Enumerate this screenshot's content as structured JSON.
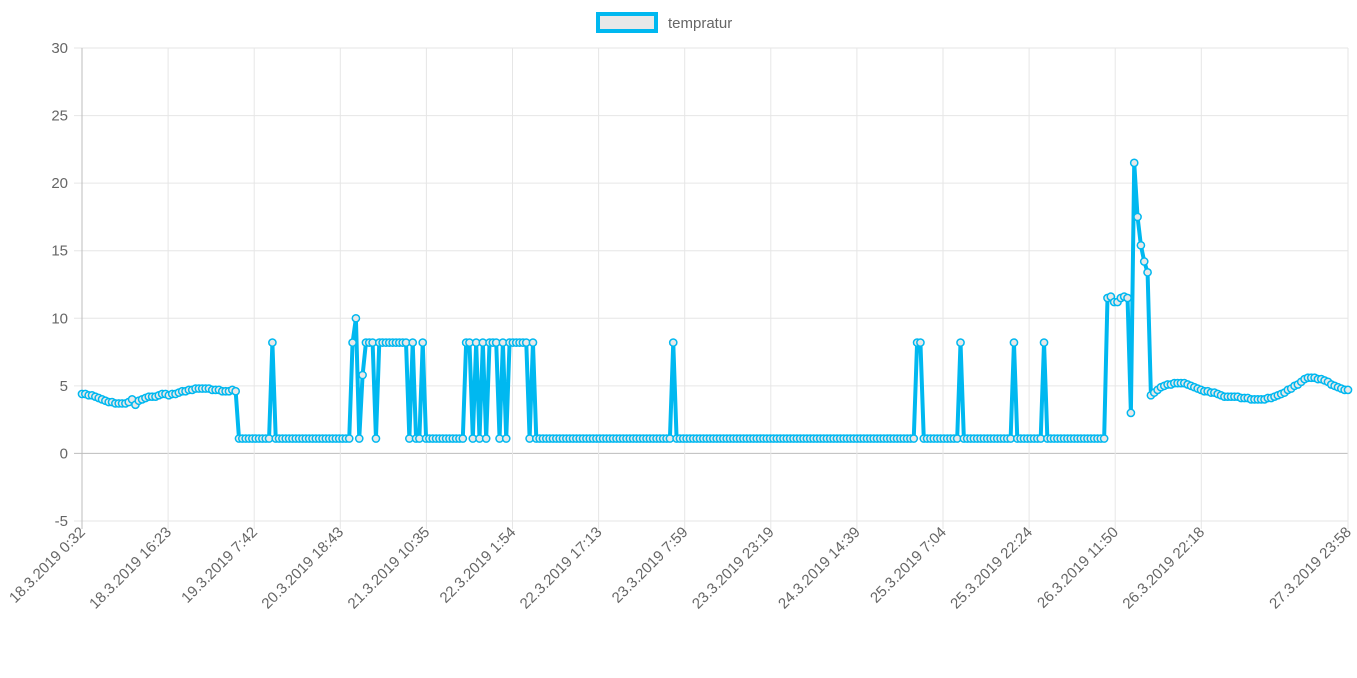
{
  "chart_data": {
    "type": "line",
    "legend": {
      "position": "top",
      "entries": [
        "tempratur"
      ]
    },
    "ylim": [
      -5,
      30
    ],
    "y_ticks": [
      "30",
      "25",
      "20",
      "15",
      "10",
      "5",
      "0",
      "-5"
    ],
    "x_tick_labels": [
      "18.3.2019 0:32",
      "18.3.2019 16:23",
      "19.3.2019 7:42",
      "20.3.2019 18:43",
      "21.3.2019 10:35",
      "22.3.2019 1:54",
      "22.3.2019 17:13",
      "23.3.2019 7:59",
      "23.3.2019 23:19",
      "24.3.2019 14:39",
      "25.3.2019 7:04",
      "25.3.2019 22:24",
      "26.3.2019 11:50",
      "26.3.2019 22:18",
      "27.3.2019 23:58"
    ],
    "grid": true,
    "series": [
      {
        "name": "tempratur",
        "color": "#00b8f0",
        "values": [
          4.4,
          4.4,
          4.3,
          4.3,
          4.2,
          4.1,
          4.0,
          3.9,
          3.8,
          3.8,
          3.7,
          3.7,
          3.7,
          3.7,
          3.8,
          4.0,
          3.6,
          3.9,
          4.0,
          4.1,
          4.2,
          4.2,
          4.2,
          4.3,
          4.4,
          4.4,
          4.3,
          4.4,
          4.4,
          4.5,
          4.6,
          4.6,
          4.7,
          4.7,
          4.8,
          4.8,
          4.8,
          4.8,
          4.8,
          4.7,
          4.7,
          4.7,
          4.6,
          4.6,
          4.6,
          4.7,
          4.6,
          1.1,
          1.1,
          1.1,
          1.1,
          1.1,
          1.1,
          1.1,
          1.1,
          1.1,
          1.1,
          8.2,
          1.1,
          1.1,
          1.1,
          1.1,
          1.1,
          1.1,
          1.1,
          1.1,
          1.1,
          1.1,
          1.1,
          1.1,
          1.1,
          1.1,
          1.1,
          1.1,
          1.1,
          1.1,
          1.1,
          1.1,
          1.1,
          1.1,
          1.1,
          8.2,
          10.0,
          1.1,
          5.8,
          8.2,
          8.2,
          8.2,
          1.1,
          8.2,
          8.2,
          8.2,
          8.2,
          8.2,
          8.2,
          8.2,
          8.2,
          8.2,
          1.1,
          8.2,
          1.1,
          1.1,
          8.2,
          1.1,
          1.1,
          1.1,
          1.1,
          1.1,
          1.1,
          1.1,
          1.1,
          1.1,
          1.1,
          1.1,
          1.1,
          8.2,
          8.2,
          1.1,
          8.2,
          1.1,
          8.2,
          1.1,
          8.2,
          8.2,
          8.2,
          1.1,
          8.2,
          1.1,
          8.2,
          8.2,
          8.2,
          8.2,
          8.2,
          8.2,
          1.1,
          8.2,
          1.1,
          1.1,
          1.1,
          1.1,
          1.1,
          1.1,
          1.1,
          1.1,
          1.1,
          1.1,
          1.1,
          1.1,
          1.1,
          1.1,
          1.1,
          1.1,
          1.1,
          1.1,
          1.1,
          1.1,
          1.1,
          1.1,
          1.1,
          1.1,
          1.1,
          1.1,
          1.1,
          1.1,
          1.1,
          1.1,
          1.1,
          1.1,
          1.1,
          1.1,
          1.1,
          1.1,
          1.1,
          1.1,
          1.1,
          1.1,
          1.1,
          8.2,
          1.1,
          1.1,
          1.1,
          1.1,
          1.1,
          1.1,
          1.1,
          1.1,
          1.1,
          1.1,
          1.1,
          1.1,
          1.1,
          1.1,
          1.1,
          1.1,
          1.1,
          1.1,
          1.1,
          1.1,
          1.1,
          1.1,
          1.1,
          1.1,
          1.1,
          1.1,
          1.1,
          1.1,
          1.1,
          1.1,
          1.1,
          1.1,
          1.1,
          1.1,
          1.1,
          1.1,
          1.1,
          1.1,
          1.1,
          1.1,
          1.1,
          1.1,
          1.1,
          1.1,
          1.1,
          1.1,
          1.1,
          1.1,
          1.1,
          1.1,
          1.1,
          1.1,
          1.1,
          1.1,
          1.1,
          1.1,
          1.1,
          1.1,
          1.1,
          1.1,
          1.1,
          1.1,
          1.1,
          1.1,
          1.1,
          1.1,
          1.1,
          1.1,
          1.1,
          1.1,
          1.1,
          1.1,
          8.2,
          8.2,
          1.1,
          1.1,
          1.1,
          1.1,
          1.1,
          1.1,
          1.1,
          1.1,
          1.1,
          1.1,
          1.1,
          8.2,
          1.1,
          1.1,
          1.1,
          1.1,
          1.1,
          1.1,
          1.1,
          1.1,
          1.1,
          1.1,
          1.1,
          1.1,
          1.1,
          1.1,
          1.1,
          8.2,
          1.1,
          1.1,
          1.1,
          1.1,
          1.1,
          1.1,
          1.1,
          1.1,
          8.2,
          1.1,
          1.1,
          1.1,
          1.1,
          1.1,
          1.1,
          1.1,
          1.1,
          1.1,
          1.1,
          1.1,
          1.1,
          1.1,
          1.1,
          1.1,
          1.1,
          1.1,
          1.1,
          11.5,
          11.6,
          11.2,
          11.2,
          11.5,
          11.6,
          11.5,
          3.0,
          21.5,
          17.5,
          15.4,
          14.2,
          13.4,
          4.3,
          4.5,
          4.7,
          4.9,
          5.0,
          5.1,
          5.1,
          5.2,
          5.2,
          5.2,
          5.2,
          5.1,
          5.0,
          4.9,
          4.8,
          4.7,
          4.6,
          4.6,
          4.5,
          4.5,
          4.4,
          4.3,
          4.2,
          4.2,
          4.2,
          4.2,
          4.2,
          4.1,
          4.1,
          4.1,
          4.0,
          4.0,
          4.0,
          4.0,
          4.0,
          4.1,
          4.1,
          4.2,
          4.3,
          4.4,
          4.5,
          4.7,
          4.8,
          5.0,
          5.1,
          5.3,
          5.5,
          5.6,
          5.6,
          5.6,
          5.5,
          5.5,
          5.4,
          5.3,
          5.1,
          5.0,
          4.9,
          4.8,
          4.7,
          4.7
        ]
      }
    ]
  }
}
